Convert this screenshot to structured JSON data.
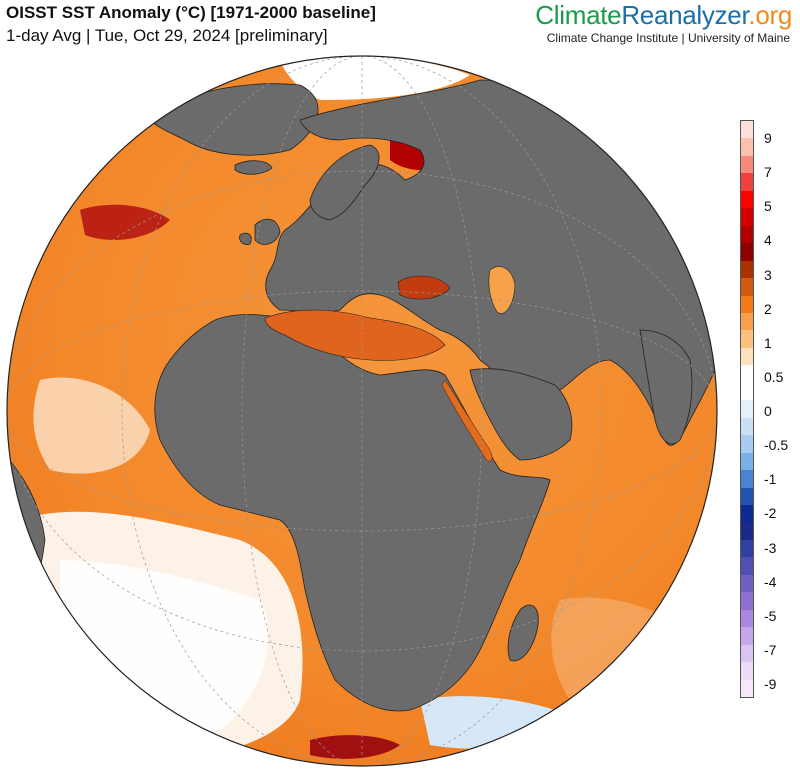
{
  "header": {
    "title": "OISST SST Anomaly (°C) [1971-2000 baseline]",
    "subtitle": "1-day Avg | Tue, Oct 29, 2024 [preliminary]",
    "brand_part1": "Climate",
    "brand_part2": "Reanalyzer",
    "brand_part3": ".org",
    "affiliation": "Climate Change Institute | University of Maine"
  },
  "colors": {
    "land": "#6b6b6b",
    "warm": "#f58a2e",
    "hot": "#b01010",
    "neutral": "#ffffff",
    "cool": "#a8d0f0"
  },
  "legend": {
    "labels": [
      "9",
      "7",
      "5",
      "4",
      "3",
      "2",
      "1",
      "0.5",
      "0",
      "-0.5",
      "-1",
      "-2",
      "-3",
      "-4",
      "-5",
      "-7",
      "-9"
    ],
    "swatches": [
      "#fde0dc",
      "#fbc0b0",
      "#f78a7c",
      "#f04040",
      "#ff0000",
      "#d40000",
      "#b00000",
      "#8c0000",
      "#a83200",
      "#cf5a10",
      "#f27a1a",
      "#f8a050",
      "#fcc080",
      "#fde2c0",
      "#ffffff",
      "#ffffff",
      "#e6f0fa",
      "#cce0f5",
      "#a8ccf0",
      "#7cb0e8",
      "#4a84d0",
      "#2454b0",
      "#0c2a90",
      "#1a2a88",
      "#3040a0",
      "#5050b0",
      "#7060c0",
      "#9070d0",
      "#a888e0",
      "#c4a8ea",
      "#dcc4f0",
      "#ecdcf6",
      "#f6e8f8"
    ]
  }
}
